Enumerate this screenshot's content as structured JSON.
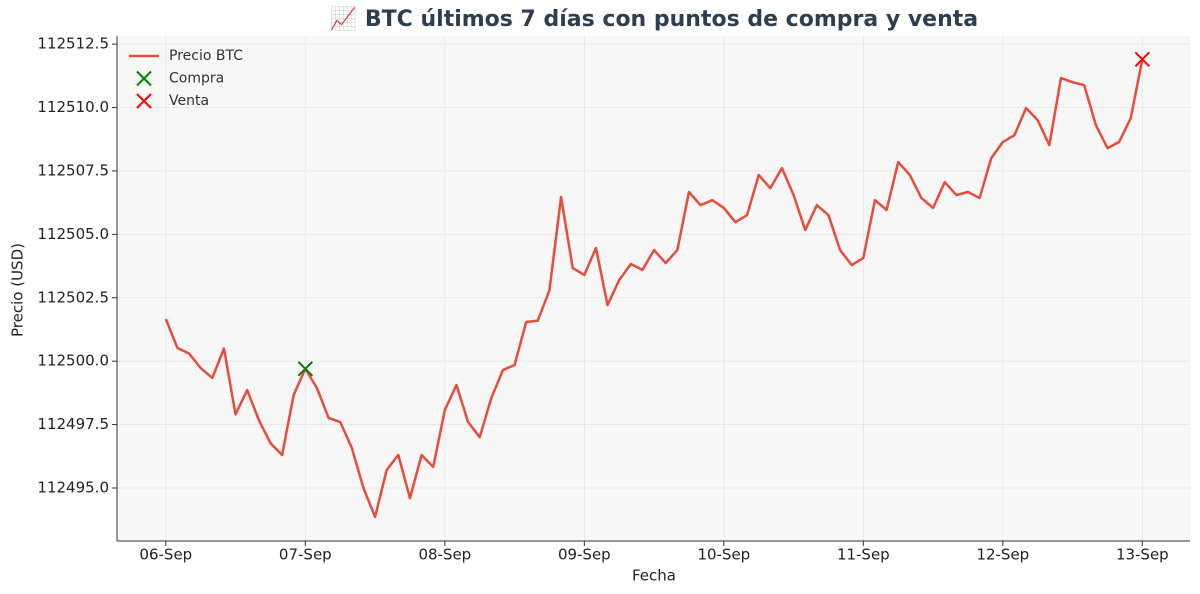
{
  "chart_data": {
    "type": "line",
    "title": "📈 BTC últimos 7 días con puntos de compra y venta",
    "x_label": "Fecha",
    "y_label": "Precio (USD)",
    "xlim": [
      -8.4,
      176.2
    ],
    "xticks": [
      {
        "value": 0,
        "label": "06-Sep"
      },
      {
        "value": 24,
        "label": "07-Sep"
      },
      {
        "value": 48,
        "label": "08-Sep"
      },
      {
        "value": 72,
        "label": "09-Sep"
      },
      {
        "value": 96,
        "label": "10-Sep"
      },
      {
        "value": 120,
        "label": "11-Sep"
      },
      {
        "value": 144,
        "label": "12-Sep"
      },
      {
        "value": 168,
        "label": "13-Sep"
      }
    ],
    "ylim": [
      112492.91,
      112512.82
    ],
    "yticks": [
      {
        "value": 112495,
        "label": "112495.0"
      },
      112497.5,
      {
        "value": 112500,
        "label": "112500.0"
      },
      112502.5,
      {
        "value": 112505,
        "label": "112505.0"
      },
      112507.5,
      {
        "value": 112510,
        "label": "112510.0"
      },
      112512.5
    ],
    "grid": true,
    "legend": "upper left",
    "series": [
      {
        "name": "Precio BTC",
        "color": "#e74c3c",
        "type": "line",
        "x": [
          0,
          2,
          4,
          6,
          8,
          10,
          12,
          14,
          16,
          18,
          20,
          22,
          24,
          26,
          28,
          30,
          32,
          34,
          36,
          38,
          40,
          42,
          44,
          46,
          48,
          50,
          52,
          54,
          56,
          58,
          60,
          62,
          64,
          66,
          68,
          70,
          72,
          74,
          76,
          78,
          80,
          82,
          84,
          86,
          88,
          90,
          92,
          94,
          96,
          98,
          100,
          102,
          104,
          106,
          108,
          110,
          112,
          114,
          116,
          118,
          120,
          122,
          124,
          126,
          128,
          130,
          132,
          134,
          136,
          138,
          140,
          142,
          144,
          146,
          148,
          150,
          152,
          154,
          156,
          158,
          160,
          162,
          164,
          166,
          168
        ],
        "values": [
          112501.66,
          112500.52,
          112500.3,
          112499.73,
          112499.34,
          112500.5,
          112497.9,
          112498.86,
          112497.68,
          112496.77,
          112496.3,
          112498.67,
          112499.7,
          112498.94,
          112497.76,
          112497.6,
          112496.58,
          112495.0,
          112493.86,
          112495.71,
          112496.3,
          112494.6,
          112496.3,
          112495.83,
          112498.07,
          112499.06,
          112497.6,
          112497.0,
          112498.55,
          112499.65,
          112499.85,
          112501.54,
          112501.6,
          112502.8,
          112506.47,
          112503.67,
          112503.4,
          112504.46,
          112502.21,
          112503.2,
          112503.83,
          112503.6,
          112504.38,
          112503.87,
          112504.38,
          112506.67,
          112506.15,
          112506.35,
          112506.04,
          112505.48,
          112505.76,
          112507.34,
          112506.82,
          112507.61,
          112506.55,
          112505.17,
          112506.15,
          112505.76,
          112504.38,
          112503.79,
          112504.07,
          112506.35,
          112505.96,
          112507.85,
          112507.34,
          112506.43,
          112506.04,
          112507.06,
          112506.55,
          112506.67,
          112506.43,
          112508.0,
          112508.64,
          112508.91,
          112509.98,
          112509.5,
          112508.52,
          112511.16,
          112511.0,
          112510.88,
          112509.31,
          112508.4,
          112508.64,
          112509.58,
          112511.9
        ]
      },
      {
        "name": "Compra",
        "color": "#008000",
        "type": "scatter",
        "x": [
          24
        ],
        "values": [
          112499.7
        ]
      },
      {
        "name": "Venta",
        "color": "#ff0000",
        "type": "scatter",
        "x": [
          168
        ],
        "values": [
          112511.9
        ]
      }
    ]
  }
}
